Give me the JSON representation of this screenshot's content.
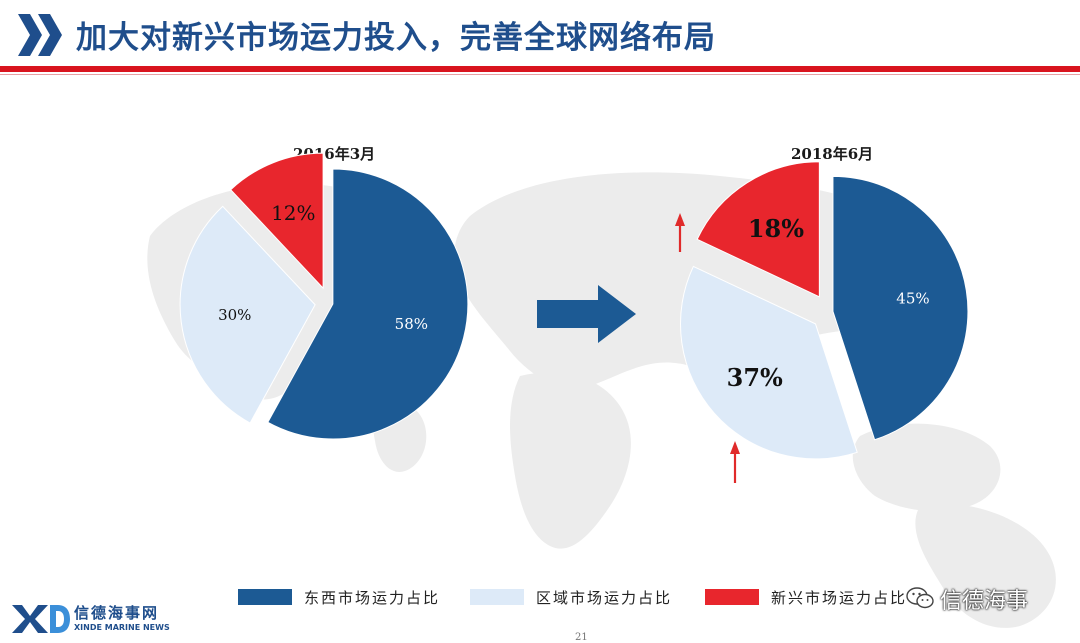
{
  "header": {
    "title": "加大对新兴市场运力投入，完善全球网络布局"
  },
  "colors": {
    "east_west": "#1c5a94",
    "regional": "#ddeaf8",
    "emerging": "#e8262d",
    "title_blue": "#1f4e8c",
    "accent_red": "#d9141e"
  },
  "chart_data": [
    {
      "type": "pie",
      "title": "2016年3月",
      "categories": [
        "东西市场运力占比",
        "区域市场运力占比",
        "新兴市场运力占比"
      ],
      "values": [
        58,
        30,
        12
      ],
      "labels": [
        "58%",
        "30%",
        "12%"
      ],
      "exploded": true
    },
    {
      "type": "pie",
      "title": "2018年6月",
      "categories": [
        "东西市场运力占比",
        "区域市场运力占比",
        "新兴市场运力占比"
      ],
      "values": [
        45,
        37,
        18
      ],
      "labels": [
        "45%",
        "37%",
        "18%"
      ],
      "exploded": true,
      "annotations": [
        "↑",
        "↑"
      ]
    }
  ],
  "legend": [
    {
      "label": "东西市场运力占比",
      "color": "#1c5a94"
    },
    {
      "label": "区域市场运力占比",
      "color": "#ddeaf8"
    },
    {
      "label": "新兴市场运力占比",
      "color": "#e8262d"
    }
  ],
  "footer": {
    "brand_cn": "信德海事网",
    "brand_en": "XINDE MARINE NEWS",
    "watermark": "信德海事",
    "page_number": "21"
  },
  "icons": {
    "header": "double-chevron-icon",
    "transition": "right-arrow-icon",
    "increase": "up-arrow-icon",
    "watermark": "wechat-icon",
    "brand": "xd-logo-icon"
  }
}
